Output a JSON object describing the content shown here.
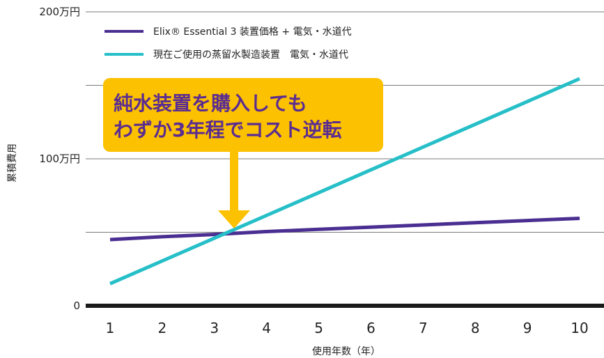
{
  "chart_data": {
    "type": "line",
    "title": "",
    "xlabel": "使用年数（年）",
    "ylabel": "累積費用",
    "x": [
      1,
      2,
      3,
      4,
      5,
      6,
      7,
      8,
      9,
      10
    ],
    "xlim": [
      1,
      10
    ],
    "ylim": [
      0,
      200
    ],
    "y_ticks": [
      0,
      100,
      200
    ],
    "y_tick_labels": [
      "0",
      "100万円",
      "200万円"
    ],
    "grid": true,
    "legend_position": "top-left",
    "series": [
      {
        "name": "Elix® Essential 3 装置価格 + 電気・水道代",
        "color": "#4b2e91",
        "values": [
          45,
          47,
          48.5,
          50.5,
          52,
          53.5,
          55,
          56.5,
          58,
          59.5
        ]
      },
      {
        "name": "現在ご使用の蒸留水製造装置　電気・水道代",
        "color": "#26bfc8",
        "values": [
          15,
          30.5,
          46,
          61.5,
          77,
          92.5,
          108,
          123.5,
          139,
          154.5
        ]
      }
    ],
    "annotation": {
      "lines": [
        "純水装置を購入しても",
        "わずか3年程でコスト逆転"
      ],
      "background": "#fcc100",
      "text_color": "#5b2d90",
      "points_to_x": 3.3
    }
  }
}
